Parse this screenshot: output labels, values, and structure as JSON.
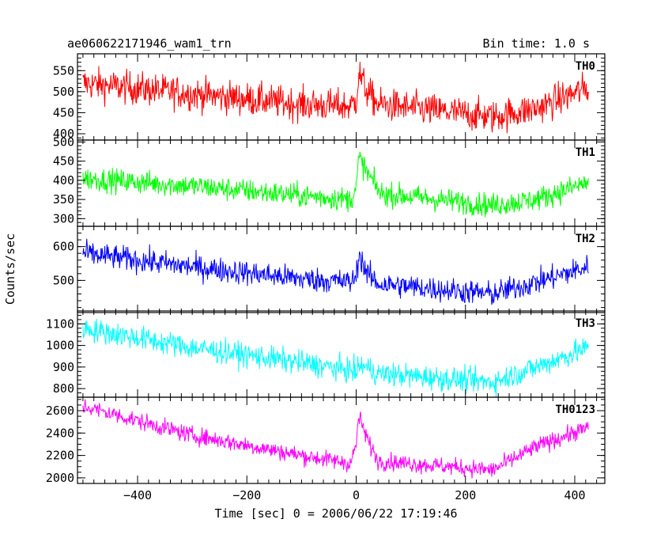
{
  "header": {
    "title": "ae060622171946_wam1_trn",
    "bin_time": "Bin time: 1.0 s"
  },
  "chart_data": {
    "type": "line",
    "xlabel": "Time [sec] 0 = 2006/06/22 17:19:46",
    "ylabel": "Counts/sec",
    "xlim": [
      -510,
      455
    ],
    "x_ticks": [
      -400,
      -200,
      0,
      200,
      400
    ],
    "x_range": [
      -500,
      425
    ],
    "panels": [
      {
        "name": "TH0",
        "color": "#ff0000",
        "ylim": [
          385,
          590
        ],
        "y_ticks": [
          400,
          450,
          500,
          550
        ],
        "y_minor_step": 10,
        "profile": [
          [
            -500,
            520
          ],
          [
            -300,
            495
          ],
          [
            -100,
            470
          ],
          [
            -10,
            465
          ],
          [
            0,
            480
          ],
          [
            5,
            545
          ],
          [
            20,
            500
          ],
          [
            40,
            470
          ],
          [
            250,
            440
          ],
          [
            330,
            460
          ],
          [
            425,
            510
          ]
        ],
        "noise": 28
      },
      {
        "name": "TH1",
        "color": "#00ff00",
        "ylim": [
          280,
          505
        ],
        "y_ticks": [
          300,
          350,
          400,
          450,
          500
        ],
        "y_minor_step": 10,
        "profile": [
          [
            -500,
            405
          ],
          [
            -300,
            385
          ],
          [
            -100,
            360
          ],
          [
            -10,
            350
          ],
          [
            0,
            380
          ],
          [
            5,
            460
          ],
          [
            20,
            420
          ],
          [
            45,
            365
          ],
          [
            250,
            335
          ],
          [
            330,
            350
          ],
          [
            425,
            395
          ]
        ],
        "noise": 22
      },
      {
        "name": "TH2",
        "color": "#0000ff",
        "ylim": [
          405,
          660
        ],
        "y_ticks": [
          500,
          600
        ],
        "y_minor_step": 20,
        "profile": [
          [
            -500,
            580
          ],
          [
            -300,
            540
          ],
          [
            -100,
            505
          ],
          [
            -10,
            495
          ],
          [
            0,
            510
          ],
          [
            5,
            580
          ],
          [
            20,
            520
          ],
          [
            40,
            490
          ],
          [
            250,
            460
          ],
          [
            330,
            495
          ],
          [
            425,
            540
          ]
        ],
        "noise": 26
      },
      {
        "name": "TH3",
        "color": "#00ffff",
        "ylim": [
          760,
          1160
        ],
        "y_ticks": [
          800,
          900,
          1000,
          1100
        ],
        "y_minor_step": 20,
        "profile": [
          [
            -500,
            1080
          ],
          [
            -300,
            990
          ],
          [
            -100,
            920
          ],
          [
            0,
            880
          ],
          [
            10,
            910
          ],
          [
            40,
            870
          ],
          [
            250,
            830
          ],
          [
            330,
            900
          ],
          [
            425,
            990
          ]
        ],
        "noise": 40
      },
      {
        "name": "TH0123",
        "color": "#ff00ff",
        "ylim": [
          1950,
          2720
        ],
        "y_ticks": [
          2000,
          2200,
          2400,
          2600
        ],
        "y_minor_step": 50,
        "profile": [
          [
            -500,
            2640
          ],
          [
            -300,
            2380
          ],
          [
            -100,
            2200
          ],
          [
            -10,
            2130
          ],
          [
            0,
            2300
          ],
          [
            5,
            2550
          ],
          [
            20,
            2350
          ],
          [
            40,
            2150
          ],
          [
            250,
            2070
          ],
          [
            330,
            2280
          ],
          [
            425,
            2450
          ]
        ],
        "noise": 55
      }
    ]
  }
}
